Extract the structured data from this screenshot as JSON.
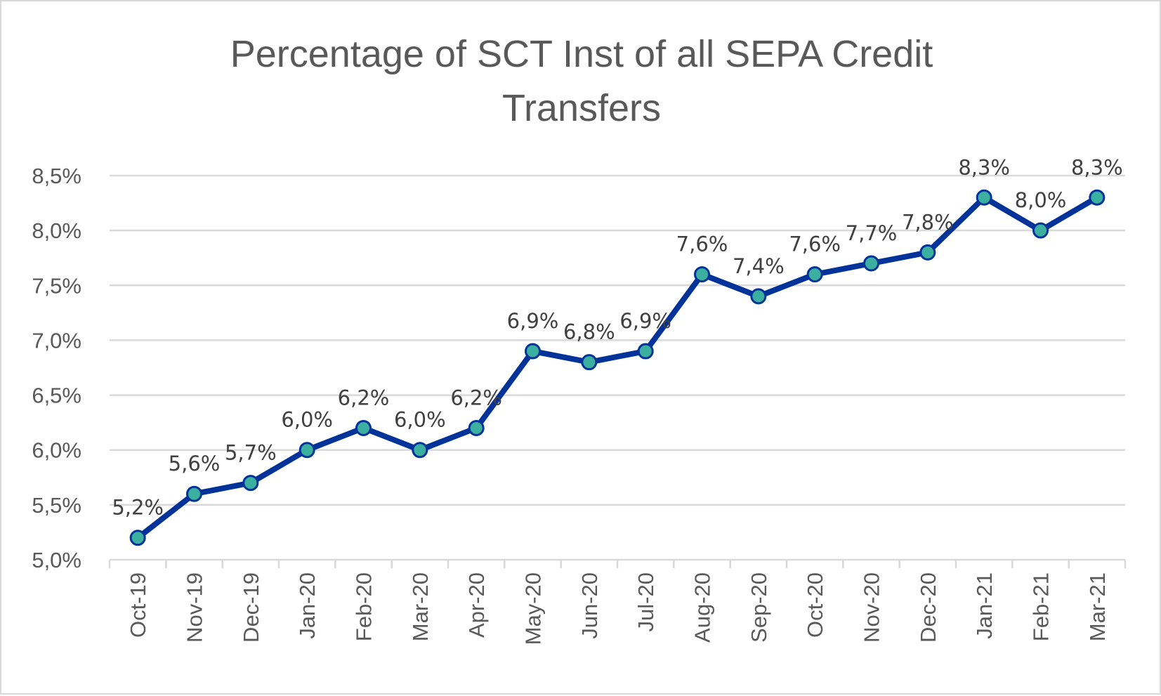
{
  "chart_data": {
    "type": "line",
    "title_lines": [
      "Percentage of SCT Inst of all SEPA Credit",
      "Transfers"
    ],
    "categories": [
      "Oct-19",
      "Nov-19",
      "Dec-19",
      "Jan-20",
      "Feb-20",
      "Mar-20",
      "Apr-20",
      "May-20",
      "Jun-20",
      "Jul-20",
      "Aug-20",
      "Sep-20",
      "Oct-20",
      "Nov-20",
      "Dec-20",
      "Jan-21",
      "Feb-21",
      "Mar-21"
    ],
    "values": [
      5.2,
      5.6,
      5.7,
      6.0,
      6.2,
      6.0,
      6.2,
      6.9,
      6.8,
      6.9,
      7.6,
      7.4,
      7.6,
      7.7,
      7.8,
      8.3,
      8.0,
      8.3
    ],
    "data_labels": [
      "5,2%",
      "5,6%",
      "5,7%",
      "6,0%",
      "6,2%",
      "6,0%",
      "6,2%",
      "6,9%",
      "6,8%",
      "6,9%",
      "7,6%",
      "7,4%",
      "7,6%",
      "7,7%",
      "7,8%",
      "8,3%",
      "8,0%",
      "8,3%"
    ],
    "y_ticks": [
      5.0,
      5.5,
      6.0,
      6.5,
      7.0,
      7.5,
      8.0,
      8.5
    ],
    "y_tick_labels": [
      "5,0%",
      "5,5%",
      "6,0%",
      "6,5%",
      "7,0%",
      "7,5%",
      "8,0%",
      "8,5%"
    ],
    "ylim": [
      5.0,
      8.5
    ],
    "grid": true,
    "legend": "none",
    "colors": {
      "line": "#003399",
      "marker": "#3cb0a0",
      "grid": "#d9d9d9"
    }
  }
}
